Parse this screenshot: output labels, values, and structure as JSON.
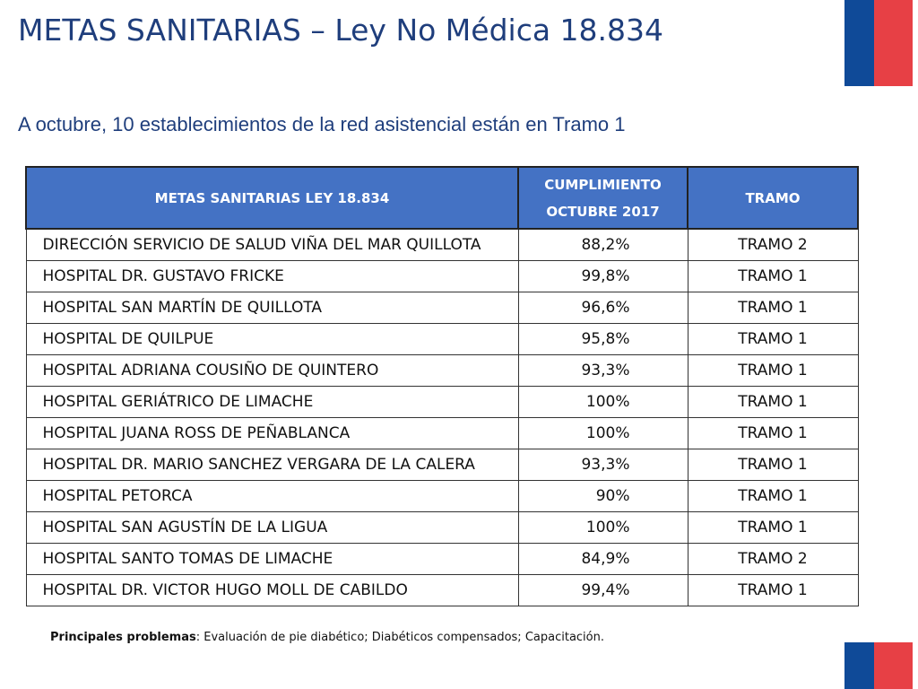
{
  "title": "METAS SANITARIAS – Ley No Médica 18.834",
  "subtitle": "A octubre, 10 establecimientos de la red asistencial están en Tramo 1",
  "table": {
    "headers": {
      "col1": "METAS SANITARIAS LEY 18.834",
      "col2_line1": "CUMPLIMIENTO",
      "col2_line2": "OCTUBRE 2017",
      "col3": "TRAMO"
    },
    "rows": [
      {
        "name": "DIRECCIÓN SERVICIO DE SALUD VIÑA DEL MAR QUILLOTA",
        "pct": "88,2%",
        "tramo": "TRAMO 2"
      },
      {
        "name": "HOSPITAL DR. GUSTAVO FRICKE",
        "pct": "99,8%",
        "tramo": "TRAMO 1"
      },
      {
        "name": "HOSPITAL SAN MARTÍN DE QUILLOTA",
        "pct": "96,6%",
        "tramo": "TRAMO 1"
      },
      {
        "name": "HOSPITAL DE QUILPUE",
        "pct": "95,8%",
        "tramo": "TRAMO 1"
      },
      {
        "name": "HOSPITAL ADRIANA COUSIÑO DE QUINTERO",
        "pct": "93,3%",
        "tramo": "TRAMO 1"
      },
      {
        "name": "HOSPITAL GERIÁTRICO DE LIMACHE",
        "pct": "100%",
        "tramo": "TRAMO 1"
      },
      {
        "name": "HOSPITAL JUANA ROSS DE PEÑABLANCA",
        "pct": "100%",
        "tramo": "TRAMO 1"
      },
      {
        "name": "HOSPITAL DR. MARIO SANCHEZ VERGARA DE LA CALERA",
        "pct": "93,3%",
        "tramo": "TRAMO 1"
      },
      {
        "name": "HOSPITAL PETORCA",
        "pct": "90%",
        "tramo": "TRAMO 1"
      },
      {
        "name": "HOSPITAL SAN AGUSTÍN DE LA LIGUA",
        "pct": "100%",
        "tramo": "TRAMO 1"
      },
      {
        "name": "HOSPITAL SANTO TOMAS DE LIMACHE",
        "pct": "84,9%",
        "tramo": "TRAMO 2"
      },
      {
        "name": "HOSPITAL DR. VICTOR HUGO MOLL DE CABILDO",
        "pct": "99,4%",
        "tramo": "TRAMO 1"
      }
    ]
  },
  "note": {
    "label": "Principales problemas",
    "text": ": Evaluación de pie diabético; Diabéticos compensados; Capacitación."
  },
  "colors": {
    "title": "#1f3e7c",
    "header_bg": "#4472c4",
    "flag_blue": "#0f4a98",
    "flag_red": "#e74045"
  }
}
